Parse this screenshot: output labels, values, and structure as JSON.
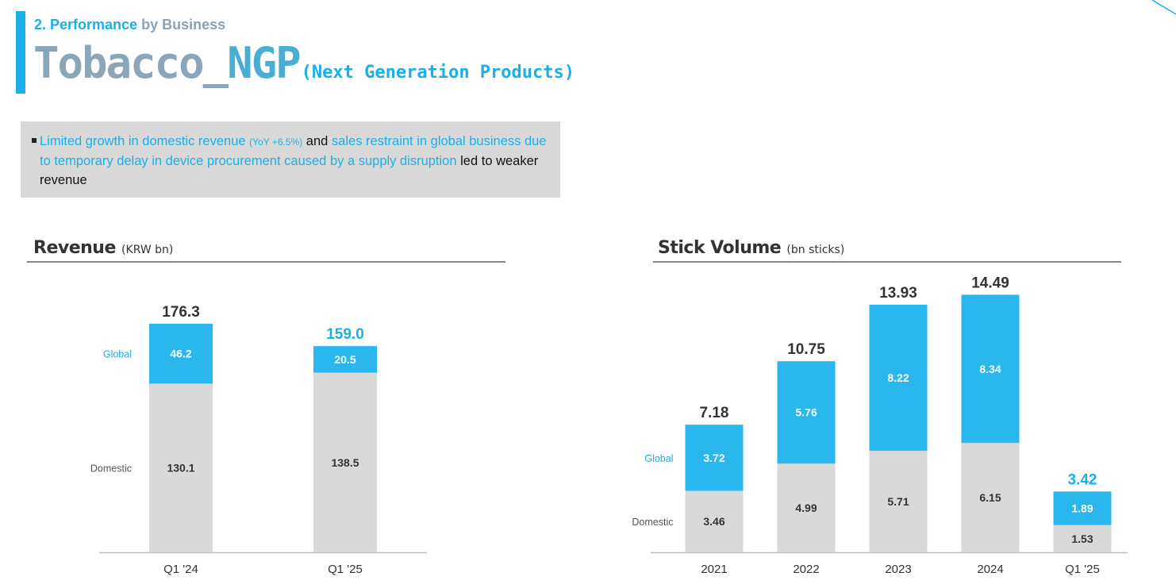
{
  "header": {
    "section_num": "2. Performance",
    "section_rest": "by Business",
    "title_main": "Tobacco_",
    "title_ngp": "NGP",
    "title_sub": "(Next Generation Products)"
  },
  "summary": {
    "part1": "Limited growth in domestic revenue",
    "yoy": "(YoY +6.5%)",
    "part2": "and",
    "part3": "sales restraint in global business due to temporary delay in device procurement caused by a supply disruption",
    "part4": "led to weaker revenue"
  },
  "revenue_header": {
    "title": "Revenue",
    "unit": "(KRW bn)"
  },
  "volume_header": {
    "title": "Stick Volume",
    "unit": "(bn sticks)"
  },
  "colors": {
    "global": "#29b7ee",
    "domestic": "#d9d9d9",
    "accent": "#1ab0e6",
    "label_dark": "#333333"
  },
  "chart_data": [
    {
      "type": "bar",
      "stacked": true,
      "title": "Revenue",
      "unit": "(KRW bn)",
      "categories": [
        "Q1 '24",
        "Q1 '25"
      ],
      "series": [
        {
          "name": "Domestic",
          "values": [
            130.1,
            138.5
          ],
          "labels": [
            "130.1",
            "138.5"
          ]
        },
        {
          "name": "Global",
          "values": [
            46.2,
            20.5
          ],
          "labels": [
            "46.2",
            "20.5"
          ]
        }
      ],
      "totals": [
        "176.3",
        "159.0"
      ],
      "highlight_last_total": true
    },
    {
      "type": "bar",
      "stacked": true,
      "title": "Stick Volume",
      "unit": "(bn sticks)",
      "categories": [
        "2021",
        "2022",
        "2023",
        "2024",
        "Q1 '25"
      ],
      "series": [
        {
          "name": "Domestic",
          "values": [
            3.46,
            4.99,
            5.71,
            6.15,
            1.53
          ],
          "labels": [
            "3.46",
            "4.99",
            "5.71",
            "6.15",
            "1.53"
          ]
        },
        {
          "name": "Global",
          "values": [
            3.72,
            5.76,
            8.22,
            8.34,
            1.89
          ],
          "labels": [
            "3.72",
            "5.76",
            "8.22",
            "8.34",
            "1.89"
          ]
        }
      ],
      "totals": [
        "7.18",
        "10.75",
        "13.93",
        "14.49",
        "3.42"
      ],
      "highlight_last_total": true
    }
  ]
}
